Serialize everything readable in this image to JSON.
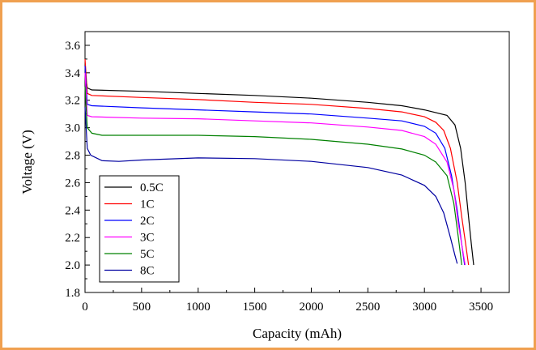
{
  "chart_data": {
    "type": "line",
    "title": "",
    "xlabel": "Capacity (mAh)",
    "ylabel": "Voltage (V)",
    "xlim": [
      0,
      3750
    ],
    "ylim": [
      1.8,
      3.7
    ],
    "xticks": [
      0,
      500,
      1000,
      1500,
      2000,
      2500,
      3000,
      3500
    ],
    "yticks": [
      1.8,
      2.0,
      2.2,
      2.4,
      2.6,
      2.8,
      3.0,
      3.2,
      3.4,
      3.6
    ],
    "grid": false,
    "legend_position": "bottom-left",
    "series": [
      {
        "name": "0.5C",
        "color": "#000000",
        "points": [
          [
            0,
            3.4
          ],
          [
            20,
            3.29
          ],
          [
            60,
            3.275
          ],
          [
            500,
            3.265
          ],
          [
            1000,
            3.25
          ],
          [
            1500,
            3.235
          ],
          [
            2000,
            3.215
          ],
          [
            2500,
            3.185
          ],
          [
            2800,
            3.16
          ],
          [
            3000,
            3.13
          ],
          [
            3200,
            3.09
          ],
          [
            3270,
            3.02
          ],
          [
            3320,
            2.85
          ],
          [
            3360,
            2.6
          ],
          [
            3390,
            2.35
          ],
          [
            3415,
            2.15
          ],
          [
            3435,
            2.0
          ]
        ]
      },
      {
        "name": "1C",
        "color": "#ff0000",
        "points": [
          [
            0,
            3.5
          ],
          [
            20,
            3.25
          ],
          [
            60,
            3.235
          ],
          [
            500,
            3.22
          ],
          [
            1000,
            3.205
          ],
          [
            1500,
            3.185
          ],
          [
            2000,
            3.17
          ],
          [
            2500,
            3.14
          ],
          [
            2800,
            3.115
          ],
          [
            3000,
            3.08
          ],
          [
            3100,
            3.04
          ],
          [
            3170,
            2.98
          ],
          [
            3230,
            2.85
          ],
          [
            3290,
            2.6
          ],
          [
            3330,
            2.35
          ],
          [
            3365,
            2.15
          ],
          [
            3390,
            2.0
          ]
        ]
      },
      {
        "name": "2C",
        "color": "#0000ff",
        "points": [
          [
            0,
            3.45
          ],
          [
            20,
            3.17
          ],
          [
            60,
            3.16
          ],
          [
            500,
            3.145
          ],
          [
            1000,
            3.13
          ],
          [
            1500,
            3.115
          ],
          [
            2000,
            3.1
          ],
          [
            2500,
            3.07
          ],
          [
            2800,
            3.05
          ],
          [
            3000,
            3.01
          ],
          [
            3100,
            2.96
          ],
          [
            3180,
            2.85
          ],
          [
            3240,
            2.65
          ],
          [
            3290,
            2.4
          ],
          [
            3330,
            2.15
          ],
          [
            3355,
            2.0
          ]
        ]
      },
      {
        "name": "3C",
        "color": "#ff00ff",
        "points": [
          [
            0,
            3.4
          ],
          [
            20,
            3.09
          ],
          [
            60,
            3.08
          ],
          [
            500,
            3.07
          ],
          [
            1000,
            3.065
          ],
          [
            1500,
            3.05
          ],
          [
            2000,
            3.035
          ],
          [
            2500,
            3.005
          ],
          [
            2800,
            2.98
          ],
          [
            3000,
            2.935
          ],
          [
            3100,
            2.88
          ],
          [
            3200,
            2.75
          ],
          [
            3260,
            2.55
          ],
          [
            3300,
            2.3
          ],
          [
            3340,
            2.1
          ],
          [
            3360,
            2.0
          ]
        ]
      },
      {
        "name": "5C",
        "color": "#008000",
        "points": [
          [
            0,
            3.3
          ],
          [
            20,
            3.0
          ],
          [
            60,
            2.96
          ],
          [
            150,
            2.945
          ],
          [
            500,
            2.945
          ],
          [
            1000,
            2.945
          ],
          [
            1500,
            2.935
          ],
          [
            2000,
            2.915
          ],
          [
            2500,
            2.88
          ],
          [
            2800,
            2.845
          ],
          [
            3000,
            2.8
          ],
          [
            3100,
            2.75
          ],
          [
            3200,
            2.65
          ],
          [
            3260,
            2.45
          ],
          [
            3300,
            2.2
          ],
          [
            3330,
            2.0
          ]
        ]
      },
      {
        "name": "8C",
        "color": "#0000a0",
        "points": [
          [
            0,
            3.15
          ],
          [
            20,
            2.85
          ],
          [
            50,
            2.8
          ],
          [
            150,
            2.76
          ],
          [
            300,
            2.755
          ],
          [
            500,
            2.765
          ],
          [
            1000,
            2.78
          ],
          [
            1500,
            2.775
          ],
          [
            2000,
            2.755
          ],
          [
            2500,
            2.71
          ],
          [
            2800,
            2.655
          ],
          [
            3000,
            2.58
          ],
          [
            3100,
            2.5
          ],
          [
            3170,
            2.38
          ],
          [
            3230,
            2.2
          ],
          [
            3270,
            2.07
          ],
          [
            3290,
            2.01
          ]
        ]
      }
    ]
  }
}
